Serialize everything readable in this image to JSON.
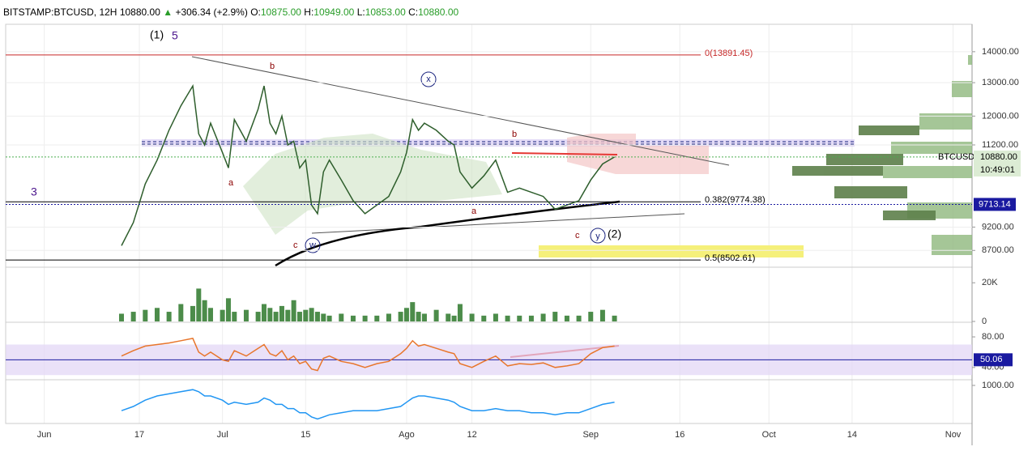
{
  "header": {
    "symbol": "BITSTAMP:BTCUSD, 12H",
    "last": "10880.00",
    "arrow": "▲",
    "change": "+306.34 (+2.9%)",
    "ohlc": [
      {
        "key": "O:",
        "value": "10875.00"
      },
      {
        "key": "H:",
        "value": "10949.00"
      },
      {
        "key": "L:",
        "value": "10853.00"
      },
      {
        "key": "C:",
        "value": "10880.00"
      }
    ]
  },
  "chart_data": [
    {
      "type": "line",
      "log_scale": true,
      "grid": true,
      "color": "#2e5e2c",
      "x": [
        13,
        15,
        17,
        19,
        21,
        23,
        25,
        26,
        27,
        28,
        30,
        31,
        32,
        34,
        36,
        37,
        38,
        39,
        40,
        41,
        42,
        43,
        44,
        45,
        46,
        47,
        48,
        50,
        52,
        54,
        56,
        58,
        60,
        61,
        62,
        63,
        64,
        66,
        68,
        69,
        70,
        72,
        74,
        76,
        78,
        80,
        82,
        84,
        86,
        88,
        90,
        92,
        94,
        96
      ],
      "values": [
        8800,
        9300,
        10200,
        10800,
        11600,
        12300,
        12900,
        11500,
        11200,
        11800,
        11000,
        10600,
        11900,
        11300,
        12200,
        12900,
        11800,
        11500,
        12000,
        11200,
        11300,
        10600,
        10800,
        9700,
        9500,
        10500,
        10800,
        10300,
        9800,
        9500,
        9700,
        9900,
        10500,
        11000,
        11900,
        11600,
        11800,
        11600,
        11300,
        11200,
        10500,
        10100,
        10400,
        10800,
        10000,
        10100,
        10000,
        9900,
        9600,
        9700,
        9800,
        10300,
        10700,
        10880
      ],
      "xlim": [
        -6.5,
        156.2
      ],
      "xticks": [
        {
          "value": 0,
          "label": "Jun"
        },
        {
          "value": 16,
          "label": "17"
        },
        {
          "value": 30,
          "label": "Jul"
        },
        {
          "value": 44,
          "label": "15"
        },
        {
          "value": 61,
          "label": "Ago"
        },
        {
          "value": 72,
          "label": "12"
        },
        {
          "value": 92,
          "label": "Sep"
        },
        {
          "value": 107,
          "label": "16"
        },
        {
          "value": 122,
          "label": "Oct"
        },
        {
          "value": 136,
          "label": "14"
        },
        {
          "value": 153,
          "label": "Nov"
        }
      ],
      "ylim": [
        8390,
        14950
      ],
      "yticks": [
        {
          "value": 14000,
          "label": "14000.00"
        },
        {
          "value": 13000,
          "label": "13000.00"
        },
        {
          "value": 12000,
          "label": "12000.00"
        },
        {
          "value": 11200,
          "label": "11200.00"
        },
        {
          "value": 9200,
          "label": "9200.00"
        },
        {
          "value": 8700,
          "label": "8700.00"
        }
      ],
      "levels": [
        {
          "label": "0(13891.45)",
          "value": 13891.45,
          "color": "#c62828"
        },
        {
          "label": "0.382(9774.38)",
          "value": 9774.38,
          "color": "#000000"
        },
        {
          "label": "0.5(8502.61)",
          "value": 8502.61,
          "color": "#000000"
        }
      ],
      "symbol": "BTCUSD",
      "last_price": {
        "value": 10880,
        "label": "10880.00"
      },
      "countdown": "10:49:01",
      "marker_price": 9713.14,
      "annotations": [
        "(1)",
        "5",
        "3",
        "b",
        "a",
        "x",
        "w",
        "c",
        "b",
        "a",
        "c",
        "y",
        "(2)"
      ]
    },
    {
      "type": "bar",
      "color": "#4c8c4a",
      "x": [
        13,
        15,
        17,
        19,
        21,
        23,
        25,
        26,
        27,
        28,
        30,
        31,
        32,
        34,
        36,
        37,
        38,
        39,
        40,
        41,
        42,
        43,
        44,
        45,
        46,
        47,
        48,
        50,
        52,
        54,
        56,
        58,
        60,
        61,
        62,
        63,
        64,
        66,
        68,
        69,
        70,
        72,
        74,
        76,
        78,
        80,
        82,
        84,
        86,
        88,
        90,
        92,
        94,
        96
      ],
      "values": [
        4000,
        5000,
        6000,
        7000,
        5000,
        9000,
        8000,
        17000,
        11000,
        7000,
        6000,
        12000,
        5000,
        6000,
        5000,
        9000,
        7000,
        5000,
        8000,
        6000,
        11000,
        5000,
        6000,
        7000,
        5000,
        4000,
        3000,
        4000,
        3000,
        3000,
        3000,
        4000,
        5000,
        7000,
        10000,
        5000,
        4000,
        6000,
        4000,
        3000,
        9000,
        4000,
        3000,
        4000,
        3000,
        3000,
        3000,
        4000,
        5000,
        3000,
        3000,
        5000,
        6000,
        3000
      ],
      "ylim": [
        0,
        26800
      ],
      "yticks": [
        {
          "value": 20000,
          "label": "20K"
        },
        0
      ]
    },
    {
      "type": "line",
      "color": "#e8762c",
      "x": [
        13,
        15,
        17,
        19,
        21,
        23,
        25,
        26,
        27,
        28,
        30,
        31,
        32,
        34,
        36,
        37,
        38,
        39,
        40,
        41,
        42,
        43,
        44,
        45,
        46,
        47,
        48,
        50,
        52,
        54,
        56,
        58,
        60,
        61,
        62,
        63,
        64,
        66,
        68,
        69,
        70,
        72,
        74,
        76,
        78,
        80,
        82,
        84,
        86,
        88,
        90,
        92,
        94,
        96
      ],
      "values": [
        55,
        62,
        68,
        70,
        72,
        75,
        78,
        60,
        55,
        60,
        50,
        48,
        62,
        55,
        65,
        70,
        58,
        55,
        62,
        50,
        55,
        45,
        48,
        38,
        36,
        52,
        55,
        48,
        45,
        40,
        45,
        48,
        58,
        65,
        75,
        68,
        70,
        65,
        60,
        58,
        45,
        40,
        48,
        55,
        42,
        45,
        44,
        46,
        40,
        42,
        45,
        58,
        66,
        68
      ],
      "ylim": [
        25,
        97
      ],
      "yticks": [
        {
          "value": 80,
          "label": "80.00"
        },
        {
          "value": 40,
          "label": "40.00"
        }
      ],
      "band": [
        30,
        70
      ],
      "midline": 50.06
    },
    {
      "type": "line",
      "color": "#2196f3",
      "x": [
        13,
        15,
        17,
        19,
        21,
        23,
        25,
        26,
        27,
        28,
        30,
        31,
        32,
        34,
        36,
        37,
        38,
        39,
        40,
        41,
        42,
        43,
        44,
        45,
        46,
        47,
        48,
        50,
        52,
        54,
        56,
        58,
        60,
        61,
        62,
        63,
        64,
        66,
        68,
        69,
        70,
        72,
        74,
        76,
        78,
        80,
        82,
        84,
        86,
        88,
        90,
        92,
        94,
        96
      ],
      "values": [
        -200,
        0,
        300,
        500,
        600,
        700,
        800,
        700,
        500,
        500,
        300,
        100,
        200,
        100,
        200,
        400,
        300,
        100,
        100,
        -100,
        -100,
        -300,
        -300,
        -500,
        -600,
        -500,
        -400,
        -300,
        -200,
        -200,
        -200,
        -100,
        0,
        200,
        400,
        500,
        500,
        400,
        300,
        200,
        0,
        -200,
        -200,
        -100,
        -200,
        -200,
        -300,
        -300,
        -400,
        -300,
        -300,
        -100,
        100,
        200
      ],
      "ylim": [
        -810,
        1230
      ],
      "yticks": [
        {
          "value": 1000,
          "label": "1000.00"
        }
      ]
    }
  ]
}
